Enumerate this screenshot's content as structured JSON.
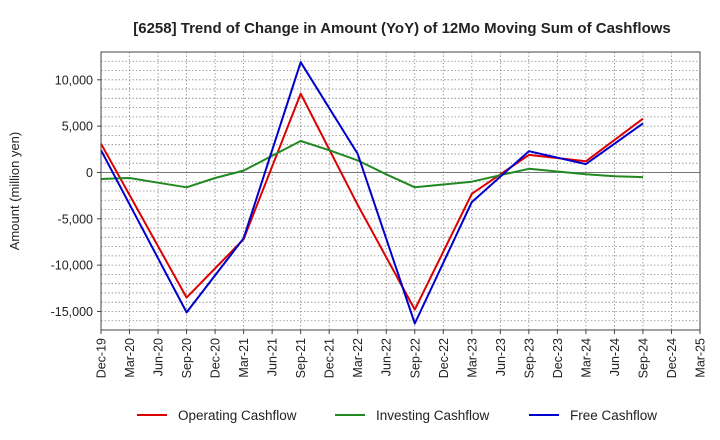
{
  "chart_data": {
    "type": "line",
    "title": "[6258]  Trend of Change in Amount (YoY) of 12Mo Moving Sum of Cashflows",
    "xlabel": "",
    "ylabel": "Amount (million yen)",
    "ylim": [
      -17000,
      13000
    ],
    "yticks": [
      10000,
      5000,
      0,
      -5000,
      -10000,
      -15000
    ],
    "ytick_labels": [
      "10,000",
      "5,000",
      "0",
      "-5,000",
      "-10,000",
      "-15,000"
    ],
    "categories": [
      "Dec-19",
      "Mar-20",
      "Jun-20",
      "Sep-20",
      "Dec-20",
      "Mar-21",
      "Jun-21",
      "Sep-21",
      "Dec-21",
      "Mar-22",
      "Jun-22",
      "Sep-22",
      "Dec-22",
      "Mar-23",
      "Jun-23",
      "Sep-23",
      "Dec-23",
      "Mar-24",
      "Jun-24",
      "Sep-24",
      "Dec-24",
      "Mar-25"
    ],
    "grid": true,
    "legend_position": "bottom",
    "series": [
      {
        "name": "Operating Cashflow",
        "color": "#dd0000",
        "values": [
          3100,
          null,
          null,
          -13500,
          null,
          -7200,
          null,
          8500,
          null,
          -3500,
          null,
          -14800,
          null,
          -2300,
          null,
          1900,
          null,
          1200,
          null,
          5800,
          null,
          null
        ]
      },
      {
        "name": "Investing Cashflow",
        "color": "#228822",
        "values": [
          -700,
          -600,
          -1100,
          -1600,
          -600,
          200,
          1800,
          3400,
          2400,
          1300,
          -200,
          -1600,
          -1300,
          -1000,
          -300,
          400,
          100,
          -200,
          -400,
          -500,
          null,
          null
        ]
      },
      {
        "name": "Free Cashflow",
        "color": "#0000cc",
        "values": [
          2400,
          null,
          null,
          -15100,
          null,
          -7100,
          null,
          11900,
          null,
          2000,
          null,
          -16300,
          null,
          -3200,
          null,
          2300,
          null,
          900,
          null,
          5300,
          null,
          null
        ]
      }
    ]
  }
}
